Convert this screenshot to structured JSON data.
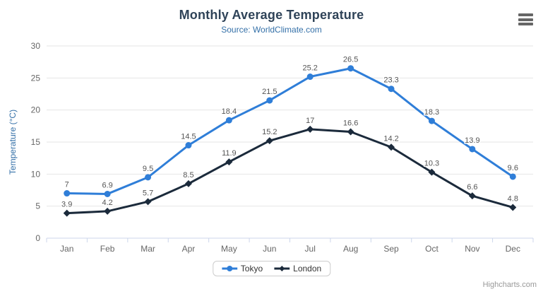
{
  "chart_data": {
    "type": "line",
    "title": "Monthly Average Temperature",
    "subtitle": "Source: WorldClimate.com",
    "categories": [
      "Jan",
      "Feb",
      "Mar",
      "Apr",
      "May",
      "Jun",
      "Jul",
      "Aug",
      "Sep",
      "Oct",
      "Nov",
      "Dec"
    ],
    "series": [
      {
        "name": "Tokyo",
        "marker": "circle",
        "color": "#2f7ed8",
        "values": [
          7,
          6.9,
          9.5,
          14.5,
          18.4,
          21.5,
          25.2,
          26.5,
          23.3,
          18.3,
          13.9,
          9.6
        ]
      },
      {
        "name": "London",
        "marker": "diamond",
        "color": "#1b2a3b",
        "values": [
          3.9,
          4.2,
          5.7,
          8.5,
          11.9,
          15.2,
          17,
          16.6,
          14.2,
          10.3,
          6.6,
          4.8
        ]
      }
    ],
    "xlabel": "",
    "ylabel": "Temperature (°C)",
    "ylim": [
      0,
      30
    ],
    "ytick_step": 5,
    "yticks": [
      0,
      5,
      10,
      15,
      20,
      25,
      30
    ],
    "grid": true,
    "legend_position": "bottom-center",
    "colors": {
      "title": "#2f4358",
      "subtitle": "#3470a8",
      "axis_title": "#3470a8",
      "axis_label": "#666666",
      "data_label": "#555555",
      "grid_line": "#e6e6e6",
      "axis_line": "#ccd6eb",
      "credit": "#999999",
      "menu_icon": "#666666"
    }
  },
  "icons": {
    "context_menu": "hamburger-icon"
  },
  "credits": "Highcharts.com"
}
